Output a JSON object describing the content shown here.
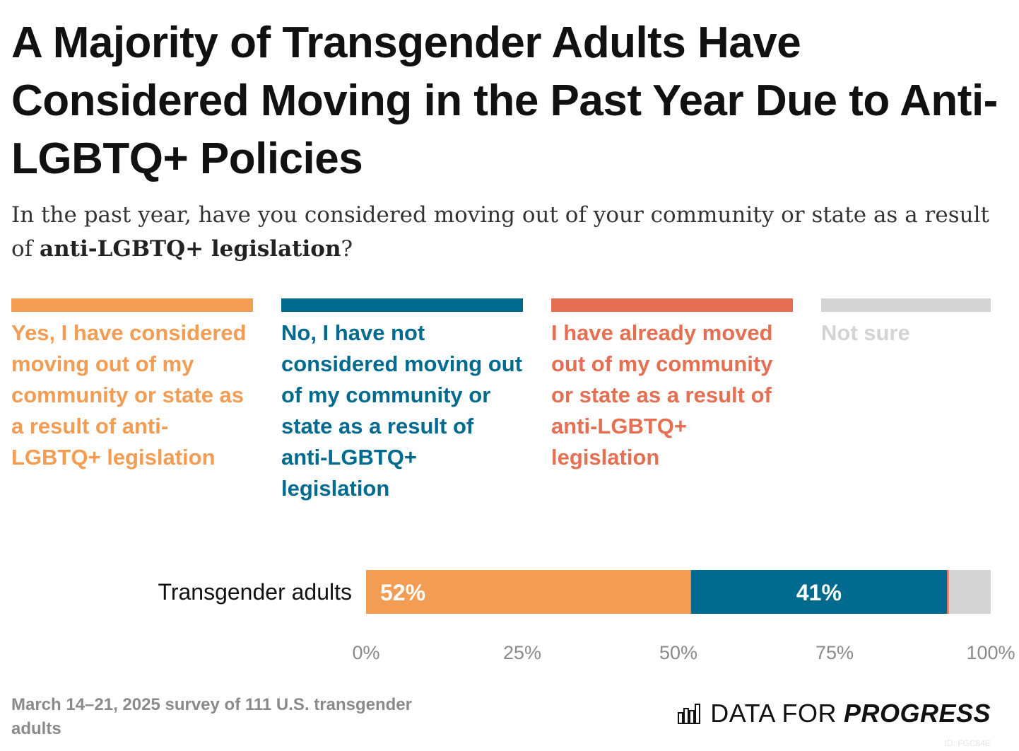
{
  "header": {
    "title": "A Majority of Transgender Adults Have Considered Moving in the Past Year Due to Anti-LGBTQ+ Policies",
    "subtitle_pre": "In the past year, have you considered moving out of your community or state as a result of ",
    "subtitle_bold": "anti-LGBTQ+ legislation",
    "subtitle_post": "?"
  },
  "legend": [
    {
      "label": "Yes, I have considered moving out of my community or state as a result of anti-LGBTQ+ legislation",
      "color": "#F39C53"
    },
    {
      "label": "No, I have not considered moving out of my community or state as a result of anti-LGBTQ+ legislation",
      "color": "#006B8F"
    },
    {
      "label": "I have already moved out of my community or state as a result of anti-LGBTQ+ legislation",
      "color": "#E46F52"
    },
    {
      "label": "Not sure",
      "color": "#D4D4D4"
    }
  ],
  "chart_data": {
    "type": "bar",
    "orientation": "horizontal",
    "stacked": true,
    "categories": [
      "Transgender adults"
    ],
    "series": [
      {
        "name": "Yes, I have considered moving out of my community or state as a result of anti-LGBTQ+ legislation",
        "values": [
          52
        ],
        "label": "52%",
        "color": "#F39C53"
      },
      {
        "name": "No, I have not considered moving out of my community or state as a result of anti-LGBTQ+ legislation",
        "values": [
          41
        ],
        "label": "41%",
        "color": "#006B8F"
      },
      {
        "name": "I have already moved out of my community or state as a result of anti-LGBTQ+ legislation",
        "values": [
          0.3
        ],
        "label": "",
        "color": "#E46F52"
      },
      {
        "name": "Not sure",
        "values": [
          6.7
        ],
        "label": "",
        "color": "#D4D4D4"
      }
    ],
    "xlim": [
      0,
      100
    ],
    "xticks": [
      0,
      25,
      50,
      75,
      100
    ],
    "xtick_labels": [
      "0%",
      "25%",
      "50%",
      "75%",
      "100%"
    ],
    "title": "A Majority of Transgender Adults Have Considered Moving in the Past Year Due to Anti-LGBTQ+ Policies",
    "xlabel": "",
    "ylabel": ""
  },
  "footer": {
    "note": "March 14–21, 2025 survey of 111 U.S. transgender adults",
    "brand_regular": "DATA FOR",
    "brand_bold": "PROGRESS",
    "chart_id": "ID: FGC84E"
  }
}
